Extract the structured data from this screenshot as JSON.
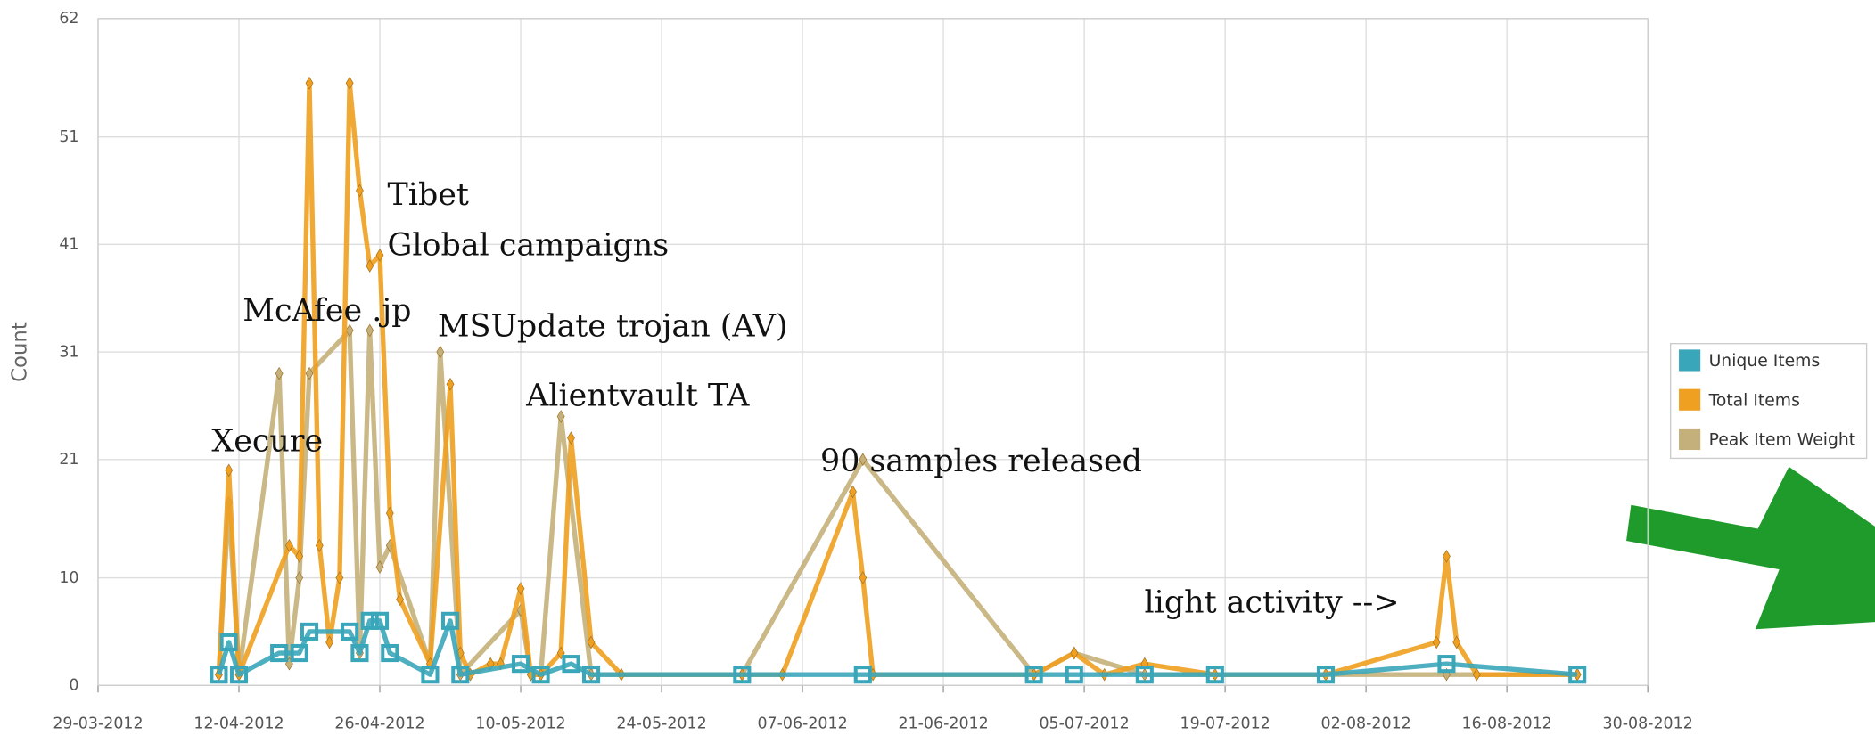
{
  "chart_data": {
    "type": "line",
    "y_label": "Count",
    "xlim": [
      "29-03-2012",
      "30-08-2012"
    ],
    "xticks": [
      "29-03-2012",
      "12-04-2012",
      "26-04-2012",
      "10-05-2012",
      "24-05-2012",
      "07-06-2012",
      "21-06-2012",
      "05-07-2012",
      "19-07-2012",
      "02-08-2012",
      "16-08-2012",
      "30-08-2012"
    ],
    "ylim": [
      0,
      62
    ],
    "yticks": [
      0,
      10,
      21,
      31,
      41,
      51,
      62
    ],
    "grid": true,
    "legend": "right",
    "series": [
      {
        "name": "Unique Items",
        "color": "#3aa6b9",
        "x": [
          "10-04-2012",
          "11-04-2012",
          "12-04-2012",
          "16-04-2012",
          "18-04-2012",
          "19-04-2012",
          "23-04-2012",
          "24-04-2012",
          "25-04-2012",
          "26-04-2012",
          "27-04-2012",
          "01-05-2012",
          "03-05-2012",
          "04-05-2012",
          "10-05-2012",
          "12-05-2012",
          "15-05-2012",
          "17-05-2012",
          "01-06-2012",
          "13-06-2012",
          "30-06-2012",
          "04-07-2012",
          "11-07-2012",
          "18-07-2012",
          "29-07-2012",
          "10-08-2012",
          "23-08-2012"
        ],
        "values": [
          1,
          4,
          1,
          3,
          3,
          5,
          5,
          3,
          6,
          6,
          3,
          1,
          6,
          1,
          2,
          1,
          2,
          1,
          1,
          1,
          1,
          1,
          1,
          1,
          1,
          2,
          1
        ]
      },
      {
        "name": "Total Items",
        "color": "#f0a020",
        "x": [
          "10-04-2012",
          "11-04-2012",
          "12-04-2012",
          "17-04-2012",
          "18-04-2012",
          "19-04-2012",
          "20-04-2012",
          "21-04-2012",
          "22-04-2012",
          "23-04-2012",
          "24-04-2012",
          "25-04-2012",
          "26-04-2012",
          "27-04-2012",
          "28-04-2012",
          "01-05-2012",
          "03-05-2012",
          "04-05-2012",
          "05-05-2012",
          "07-05-2012",
          "08-05-2012",
          "10-05-2012",
          "11-05-2012",
          "12-05-2012",
          "14-05-2012",
          "15-05-2012",
          "17-05-2012",
          "20-05-2012",
          "01-06-2012",
          "05-06-2012",
          "12-06-2012",
          "13-06-2012",
          "14-06-2012",
          "30-06-2012",
          "04-07-2012",
          "07-07-2012",
          "11-07-2012",
          "18-07-2012",
          "29-07-2012",
          "09-08-2012",
          "10-08-2012",
          "11-08-2012",
          "13-08-2012",
          "23-08-2012"
        ],
        "values": [
          1,
          20,
          1,
          13,
          12,
          56,
          13,
          4,
          10,
          56,
          46,
          39,
          40,
          16,
          8,
          2,
          28,
          3,
          1,
          2,
          2,
          9,
          1,
          1,
          3,
          23,
          4,
          1,
          1,
          1,
          18,
          10,
          1,
          1,
          3,
          1,
          2,
          1,
          1,
          4,
          12,
          4,
          1,
          1
        ]
      },
      {
        "name": "Peak Item Weight",
        "color": "#c4b07a",
        "x": [
          "10-04-2012",
          "11-04-2012",
          "12-04-2012",
          "16-04-2012",
          "17-04-2012",
          "18-04-2012",
          "19-04-2012",
          "23-04-2012",
          "24-04-2012",
          "25-04-2012",
          "26-04-2012",
          "27-04-2012",
          "01-05-2012",
          "02-05-2012",
          "04-05-2012",
          "10-05-2012",
          "11-05-2012",
          "12-05-2012",
          "14-05-2012",
          "17-05-2012",
          "01-06-2012",
          "13-06-2012",
          "30-06-2012",
          "04-07-2012",
          "11-07-2012",
          "29-07-2012",
          "10-08-2012",
          "23-08-2012"
        ],
        "values": [
          1,
          17,
          1,
          29,
          2,
          10,
          29,
          33,
          3,
          33,
          11,
          13,
          2,
          31,
          1,
          7,
          1,
          1,
          25,
          1,
          1,
          21,
          1,
          3,
          1,
          1,
          1,
          1
        ]
      }
    ],
    "annotations": [
      "Xecure",
      "McAfee .jp",
      "Tibet",
      "Global campaigns",
      "MSUpdate trojan (AV)",
      "Alientvault TA",
      "90 samples released",
      "light activity -->"
    ]
  }
}
